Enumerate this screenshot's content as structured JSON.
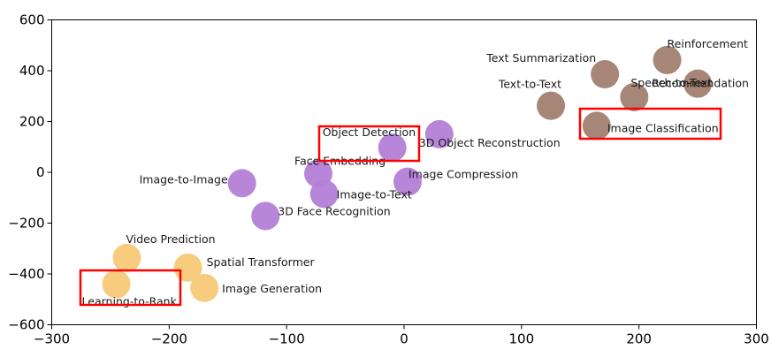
{
  "chart_data": {
    "type": "scatter",
    "title": "",
    "xlabel": "",
    "ylabel": "",
    "xlim": [
      -300,
      300
    ],
    "ylim": [
      -600,
      600
    ],
    "grid": false,
    "xticks": [
      -300,
      -200,
      -100,
      0,
      100,
      200,
      300
    ],
    "yticks": [
      -600,
      -400,
      -200,
      0,
      200,
      400,
      600
    ],
    "xtick_labels": [
      "−300",
      "−200",
      "−100",
      "0",
      "100",
      "200",
      "300"
    ],
    "ytick_labels": [
      "−600",
      "−400",
      "−200",
      "0",
      "200",
      "400",
      "600"
    ],
    "colors": {
      "purple": "#b47fd6",
      "orange": "#f8c978",
      "brown": "#a17f70",
      "highlight_box": "#ff0000"
    },
    "points": [
      {
        "label": "Reinforcement",
        "x": 224,
        "y": 442,
        "group": "brown"
      },
      {
        "label": "Text Summarization",
        "x": 171,
        "y": 386,
        "group": "brown"
      },
      {
        "label": "Recommendation",
        "x": 250,
        "y": 349,
        "group": "brown"
      },
      {
        "label": "Text-to-Text",
        "x": 125,
        "y": 262,
        "group": "brown"
      },
      {
        "label": "Speech-to-Text",
        "x": 196,
        "y": 296,
        "group": "brown"
      },
      {
        "label": "Image Classification",
        "x": 164,
        "y": 183,
        "group": "brown"
      },
      {
        "label": "Object Detection",
        "x": -10,
        "y": 97,
        "group": "purple"
      },
      {
        "label": "3D Object Reconstruction",
        "x": 30,
        "y": 150,
        "group": "purple"
      },
      {
        "label": "Face Embedding",
        "x": -73,
        "y": -5,
        "group": "purple"
      },
      {
        "label": "Image Compression",
        "x": 3,
        "y": -37,
        "group": "purple"
      },
      {
        "label": "Image-to-Image",
        "x": -138,
        "y": -43,
        "group": "purple"
      },
      {
        "label": "Image-to-Text",
        "x": -68,
        "y": -85,
        "group": "purple"
      },
      {
        "label": "3D Face Recognition",
        "x": -118,
        "y": -172,
        "group": "purple"
      },
      {
        "label": "Video Prediction",
        "x": -236,
        "y": -337,
        "group": "orange"
      },
      {
        "label": "Spatial Transformer",
        "x": -184,
        "y": -375,
        "group": "orange"
      },
      {
        "label": "Image Generation",
        "x": -170,
        "y": -455,
        "group": "orange"
      },
      {
        "label": "Learning-to-Rank",
        "x": -245,
        "y": -440,
        "group": "orange"
      }
    ],
    "highlighted": [
      "Object Detection",
      "Image Classification",
      "Learning-to-Rank"
    ]
  }
}
